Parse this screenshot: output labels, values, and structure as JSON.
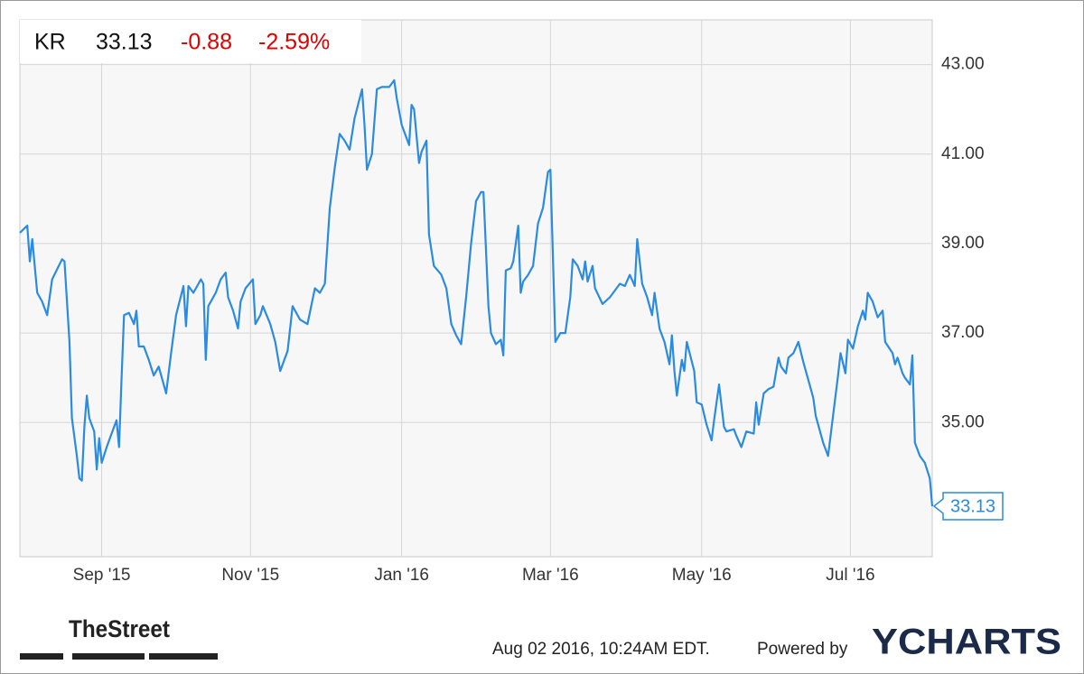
{
  "header": {
    "ticker": "KR",
    "price": "33.13",
    "change": "-0.88",
    "change_percent": "-2.59%"
  },
  "footer": {
    "brand": "TheStreet",
    "timestamp": "Aug 02 2016, 10:24AM EDT.",
    "powered_by": "Powered by",
    "provider": "YCHARTS"
  },
  "chart_data": {
    "type": "line",
    "x": [
      0,
      3,
      4,
      5,
      7,
      9,
      11,
      13,
      17,
      18,
      20,
      21,
      23,
      24,
      25,
      26,
      27,
      28,
      30,
      31,
      32,
      33,
      35,
      37,
      39,
      40,
      41,
      42,
      44,
      46,
      47,
      48,
      50,
      52,
      54,
      56,
      58,
      59,
      61,
      63,
      66,
      67,
      68,
      70,
      73,
      74,
      75,
      76,
      79,
      81,
      83,
      84,
      86,
      88,
      89,
      91,
      94,
      95,
      97,
      98,
      101,
      103,
      105,
      108,
      110,
      113,
      116,
      119,
      121,
      123,
      125,
      127,
      129,
      131,
      133,
      135,
      138,
      139,
      140,
      142,
      144,
      146,
      149,
      151,
      152,
      154,
      157,
      158,
      159,
      161,
      162,
      164,
      165,
      167,
      170,
      172,
      174,
      176,
      178,
      180,
      182,
      184,
      186,
      187,
      189,
      190,
      192,
      194,
      195,
      196,
      198,
      199,
      201,
      202,
      203,
      205,
      207,
      209,
      211,
      213,
      214,
      216,
      218,
      220,
      222,
      223,
      225,
      227,
      228,
      229,
      231,
      232,
      235,
      238,
      240,
      242,
      244,
      246,
      248,
      249,
      251,
      253,
      255,
      256,
      258,
      260,
      262,
      263,
      264,
      265,
      267,
      268,
      269,
      272,
      273,
      275,
      277,
      279,
      280,
      282,
      284,
      285,
      288,
      289,
      291,
      293,
      296,
      297,
      298,
      300,
      302,
      304,
      306,
      307,
      309,
      310,
      312,
      314,
      316,
      318,
      320,
      321,
      324,
      326,
      328,
      330,
      331,
      333,
      334,
      336,
      338,
      340,
      341,
      342,
      344,
      346,
      348,
      349,
      352,
      353,
      354,
      356,
      357,
      359,
      360,
      361,
      363,
      365,
      367,
      368
    ],
    "series": [
      {
        "color": "#2a8be0",
        "values": [
          39.24,
          39.4,
          38.6,
          39.1,
          37.9,
          37.7,
          37.4,
          38.2,
          38.65,
          38.6,
          36.8,
          35.1,
          34.25,
          33.75,
          33.7,
          34.9,
          35.6,
          35.1,
          34.8,
          33.95,
          34.65,
          34.1,
          34.45,
          34.75,
          35.05,
          34.45,
          35.95,
          37.4,
          37.45,
          37.2,
          37.5,
          36.7,
          36.7,
          36.4,
          36.05,
          36.25,
          35.85,
          35.65,
          36.55,
          37.4,
          38.05,
          37.15,
          38.05,
          37.9,
          38.2,
          38.1,
          36.4,
          37.6,
          37.9,
          38.2,
          38.35,
          37.8,
          37.5,
          37.1,
          37.7,
          38.0,
          38.2,
          37.2,
          37.4,
          37.6,
          37.2,
          36.8,
          36.15,
          36.6,
          37.6,
          37.3,
          37.2,
          38.0,
          37.9,
          38.1,
          39.8,
          40.7,
          41.45,
          41.3,
          41.1,
          41.8,
          42.45,
          41.65,
          40.65,
          41.0,
          42.45,
          42.5,
          42.5,
          42.65,
          42.25,
          41.65,
          41.2,
          42.1,
          42.0,
          40.8,
          41.05,
          41.3,
          39.2,
          38.5,
          38.3,
          38.0,
          37.2,
          36.95,
          36.75,
          37.8,
          39.0,
          39.95,
          40.15,
          40.15,
          37.6,
          37.0,
          36.75,
          36.85,
          36.5,
          38.4,
          38.45,
          38.6,
          39.4,
          37.9,
          38.15,
          38.3,
          38.5,
          39.45,
          39.8,
          40.6,
          40.65,
          36.8,
          37.0,
          37.0,
          37.8,
          38.65,
          38.5,
          38.2,
          38.6,
          38.15,
          38.5,
          38.0,
          37.65,
          37.8,
          37.95,
          38.1,
          38.05,
          38.3,
          38.05,
          39.1,
          38.1,
          37.8,
          37.4,
          37.9,
          37.1,
          36.8,
          36.3,
          36.95,
          36.15,
          35.6,
          36.4,
          36.15,
          36.8,
          36.15,
          35.45,
          35.4,
          34.95,
          34.6,
          35.05,
          35.85,
          34.9,
          34.8,
          34.85,
          34.7,
          34.45,
          34.8,
          34.75,
          35.45,
          34.95,
          35.65,
          35.75,
          35.8,
          36.45,
          36.25,
          36.1,
          36.45,
          36.55,
          36.8,
          36.35,
          35.95,
          35.55,
          35.15,
          34.55,
          34.25,
          35.15,
          36.05,
          36.55,
          36.1,
          36.85,
          36.65,
          37.15,
          37.5,
          37.3,
          37.9,
          37.7,
          37.35,
          37.5,
          36.8,
          36.55,
          36.3,
          36.45,
          36.1,
          36.0,
          35.85,
          36.5,
          34.55,
          34.25,
          34.1,
          33.75,
          33.13
        ]
      }
    ],
    "xlim": [
      0,
      368
    ],
    "xticks": [
      {
        "value": 33,
        "label": "Sep '15"
      },
      {
        "value": 93,
        "label": "Nov '15"
      },
      {
        "value": 154,
        "label": "Jan '16"
      },
      {
        "value": 214,
        "label": "Mar '16"
      },
      {
        "value": 275,
        "label": "May '16"
      },
      {
        "value": 335,
        "label": "Jul '16"
      }
    ],
    "ylim": [
      32,
      44
    ],
    "yticks": [
      {
        "value": 35,
        "label": "35.00"
      },
      {
        "value": 37,
        "label": "37.00"
      },
      {
        "value": 39,
        "label": "39.00"
      },
      {
        "value": 41,
        "label": "41.00"
      },
      {
        "value": 43,
        "label": "43.00"
      }
    ],
    "grid": true
  }
}
